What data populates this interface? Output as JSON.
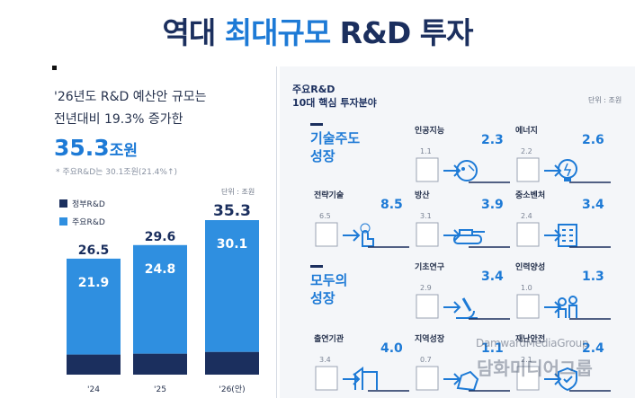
{
  "title": {
    "pre": "역대 ",
    "highlight": "최대규모",
    "post": " R&D 투자"
  },
  "left": {
    "intro_line1": "'26년도 R&D 예산안 규모는",
    "intro_line2": "전년대비 19.3% 증가한",
    "big_value": "35.3",
    "big_suffix": "조원",
    "note": "* 주요R&D는 30.1조원(21.4%↑)",
    "unit": "단위 : 조원"
  },
  "right": {
    "header_line1": "주요R&D",
    "header_line2": "10대 핵심 투자분야",
    "unit": "단위 : 조원",
    "categories": [
      {
        "line1": "기술주도",
        "line2": "성장"
      },
      {
        "line1": "모두의",
        "line2": "성장"
      }
    ],
    "cells": [
      {
        "name": "인공지능",
        "from": "1.1",
        "to": "2.3",
        "icon": "robot-head-icon"
      },
      {
        "name": "에너지",
        "from": "2.2",
        "to": "2.6",
        "icon": "lightbulb-icon"
      },
      {
        "name": "전략기술",
        "from": "6.5",
        "to": "8.5",
        "icon": "pointing-hand-icon"
      },
      {
        "name": "방산",
        "from": "3.1",
        "to": "3.9",
        "icon": "tank-icon"
      },
      {
        "name": "중소벤처",
        "from": "2.4",
        "to": "3.4",
        "icon": "building-icon"
      },
      {
        "name": "기초연구",
        "from": "2.9",
        "to": "3.4",
        "icon": "microscope-icon"
      },
      {
        "name": "인력양성",
        "from": "1.0",
        "to": "1.3",
        "icon": "people-icon"
      },
      {
        "name": "출연기관",
        "from": "3.4",
        "to": "4.0",
        "icon": "office-building-icon"
      },
      {
        "name": "지역성장",
        "from": "0.7",
        "to": "1.1",
        "icon": "map-region-icon"
      },
      {
        "name": "재난안전",
        "from": "2.1",
        "to": "2.4",
        "icon": "shield-icon"
      }
    ]
  },
  "watermark": {
    "line1": "DamwardMediaGroup",
    "line2": "담화미디어그룹"
  },
  "chart_data": {
    "type": "bar",
    "stacked": true,
    "categories": [
      "'24",
      "'25",
      "'26(안)"
    ],
    "totals": [
      26.5,
      29.6,
      35.3
    ],
    "series": [
      {
        "name": "정부R&D",
        "values": [
          4.6,
          4.8,
          5.2
        ],
        "color": "#1b2f5e"
      },
      {
        "name": "주요R&D",
        "values": [
          21.9,
          24.8,
          30.1
        ],
        "color": "#2f8fe0"
      }
    ],
    "ylim": [
      0,
      35.3
    ],
    "unit": "단위 : 조원",
    "legend_position": "top-left"
  }
}
